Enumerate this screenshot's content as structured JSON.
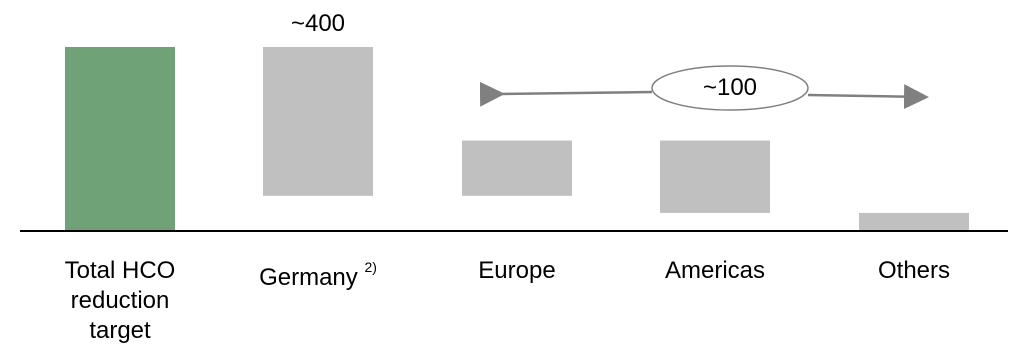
{
  "chart_data": {
    "type": "bar",
    "subtype": "waterfall",
    "categories": [
      "Total HCO reduction target",
      "Germany",
      "Europe",
      "Americas",
      "Others"
    ],
    "category_footnotes": [
      "",
      "2)",
      "",
      "",
      ""
    ],
    "bars": [
      {
        "category": "Total HCO reduction target",
        "start": 0,
        "end": 18.3,
        "color": "#6fa276"
      },
      {
        "category": "Germany",
        "start": 3.5,
        "end": 18.3,
        "color": "#c0c0c0"
      },
      {
        "category": "Europe",
        "start": 3.5,
        "end": 9.0,
        "color": "#c0c0c0"
      },
      {
        "category": "Americas",
        "start": 1.8,
        "end": 9.0,
        "color": "#c0c0c0"
      },
      {
        "category": "Others",
        "start": 0,
        "end": 1.8,
        "color": "#c0c0c0"
      }
    ],
    "annotations": {
      "germany_value": "~400",
      "bracket_value": "~100",
      "bracket_span": [
        "Europe",
        "Others"
      ]
    },
    "title": "",
    "xlabel": "",
    "ylabel": "",
    "ylim": [
      0,
      18.3
    ],
    "grid": false,
    "legend": "none"
  },
  "colors": {
    "total_bar": "#6fa276",
    "segment_bar": "#c0c0c0",
    "axis": "#000000",
    "arrow": "#808080"
  }
}
